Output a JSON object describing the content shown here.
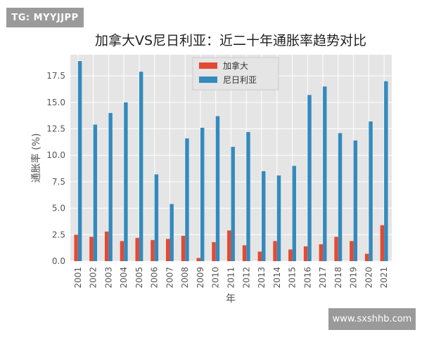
{
  "badges": {
    "tag": "TG: MYYJJPP",
    "site": "www.sxshhb.com"
  },
  "colors": {
    "plot_bg": "#e5e5e5",
    "grid": "#ffffff",
    "canada": "#e24a33",
    "nigeria": "#348abd"
  },
  "chart_data": {
    "type": "bar",
    "title": "加拿大VS尼日利亚：近二十年通胀率趋势对比",
    "xlabel": "年",
    "ylabel": "通胀率 (%)",
    "ylim": [
      0,
      19.5
    ],
    "yticks": [
      "0.0",
      "2.5",
      "5.0",
      "7.5",
      "10.0",
      "12.5",
      "15.0",
      "17.5"
    ],
    "grid": true,
    "legend_position": "top-center",
    "categories": [
      "2001",
      "2002",
      "2003",
      "2004",
      "2005",
      "2006",
      "2007",
      "2008",
      "2009",
      "2010",
      "2011",
      "2012",
      "2013",
      "2014",
      "2015",
      "2016",
      "2017",
      "2018",
      "2019",
      "2020",
      "2021"
    ],
    "series": [
      {
        "name": "加拿大",
        "color": "#e24a33",
        "values": [
          2.5,
          2.3,
          2.8,
          1.9,
          2.2,
          2.0,
          2.1,
          2.4,
          0.3,
          1.8,
          2.9,
          1.5,
          0.9,
          1.9,
          1.1,
          1.4,
          1.6,
          2.3,
          1.9,
          0.7,
          3.4
        ]
      },
      {
        "name": "尼日利亚",
        "color": "#348abd",
        "values": [
          18.9,
          12.9,
          14.0,
          15.0,
          17.9,
          8.2,
          5.4,
          11.6,
          12.6,
          13.7,
          10.8,
          12.2,
          8.5,
          8.1,
          9.0,
          15.7,
          16.5,
          12.1,
          11.4,
          13.2,
          17.0
        ]
      }
    ]
  }
}
